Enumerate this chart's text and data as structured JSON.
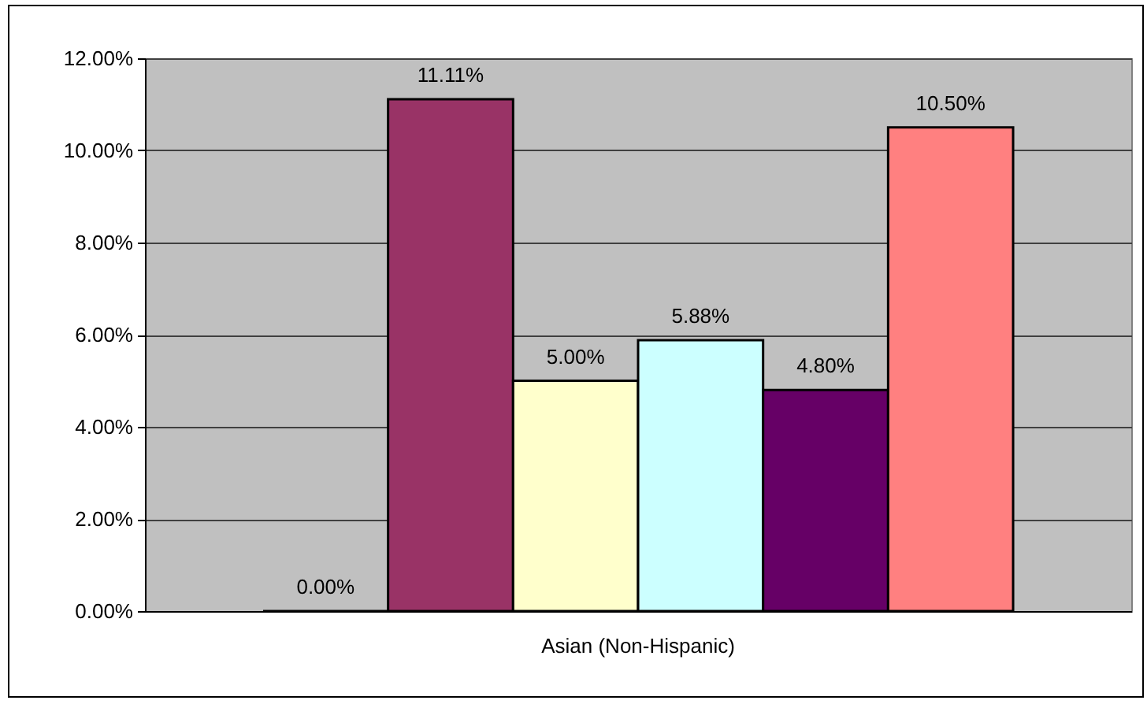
{
  "chart_data": {
    "type": "bar",
    "categories": [
      "Asian (Non-Hispanic)"
    ],
    "series": [
      {
        "color": "#000000",
        "values": [
          0
        ],
        "value_labels": [
          "0.00%"
        ]
      },
      {
        "color": "#993366",
        "values": [
          11.11
        ],
        "value_labels": [
          "11.11%"
        ]
      },
      {
        "color": "#ffffcc",
        "values": [
          5.0
        ],
        "value_labels": [
          "5.00%"
        ]
      },
      {
        "color": "#ccffff",
        "values": [
          5.88
        ],
        "value_labels": [
          "5.88%"
        ]
      },
      {
        "color": "#660066",
        "values": [
          4.8
        ],
        "value_labels": [
          "4.80%"
        ]
      },
      {
        "color": "#ff8080",
        "values": [
          10.5
        ],
        "value_labels": [
          "10.50%"
        ]
      }
    ],
    "ylim": [
      0,
      12
    ],
    "yticks": [
      {
        "value": 0,
        "label": "0.00%"
      },
      {
        "value": 2,
        "label": "2.00%"
      },
      {
        "value": 4,
        "label": "4.00%"
      },
      {
        "value": 6,
        "label": "6.00%"
      },
      {
        "value": 8,
        "label": "8.00%"
      },
      {
        "value": 10,
        "label": "10.00%"
      },
      {
        "value": 12,
        "label": "12.00%"
      }
    ],
    "grid": "y"
  }
}
